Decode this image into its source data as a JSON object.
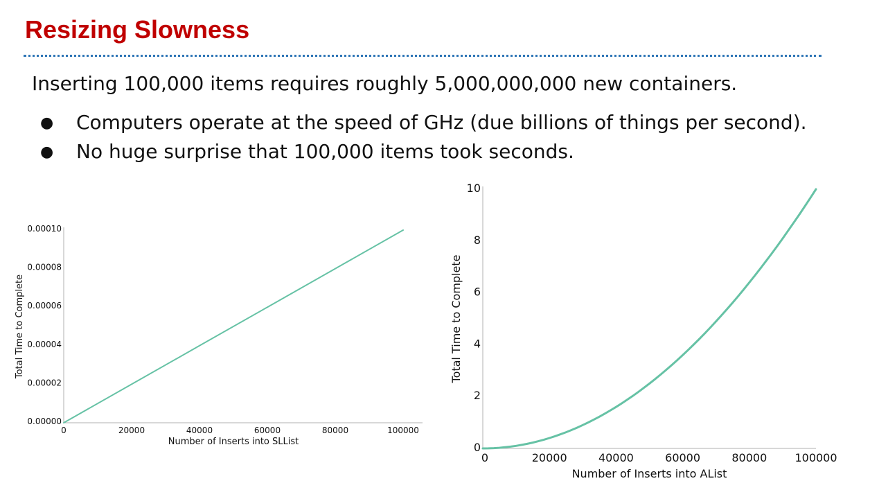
{
  "slide": {
    "title": "Resizing Slowness",
    "lead": "Inserting 100,000 items requires roughly 5,000,000,000 new containers.",
    "bullets": [
      "Computers operate at the speed of GHz (due billions of things per second).",
      "No huge surprise that 100,000 items took seconds."
    ],
    "bullet_glyph": "●"
  },
  "colors": {
    "title": "#c00000",
    "rule": "#2e75b6",
    "series": "#66c2a5"
  },
  "chart_data": [
    {
      "type": "line",
      "xlabel": "Number of Inserts into SLList",
      "ylabel": "Total Time to Complete",
      "xlim": [
        0,
        100000
      ],
      "ylim": [
        0,
        0.0001
      ],
      "xticks": [
        "0",
        "20000",
        "40000",
        "60000",
        "80000",
        "100000"
      ],
      "yticks": [
        "0.00000",
        "0.00002",
        "0.00004",
        "0.00006",
        "0.00008",
        "0.00010"
      ],
      "x": [
        0,
        20000,
        40000,
        60000,
        80000,
        100000
      ],
      "series": [
        {
          "values": [
            0,
            2e-05,
            4e-05,
            6e-05,
            8e-05,
            0.0001
          ]
        }
      ],
      "grid": false
    },
    {
      "type": "line",
      "xlabel": "Number of Inserts into AList",
      "ylabel": "Total Time to Complete",
      "xlim": [
        0,
        100000
      ],
      "ylim": [
        0,
        10
      ],
      "xticks": [
        "0",
        "20000",
        "40000",
        "60000",
        "80000",
        "100000"
      ],
      "yticks": [
        "0",
        "2",
        "4",
        "6",
        "8",
        "10"
      ],
      "x": [
        0,
        10000,
        20000,
        30000,
        40000,
        50000,
        60000,
        70000,
        80000,
        90000,
        100000
      ],
      "series": [
        {
          "values": [
            0,
            0.1,
            0.4,
            0.9,
            1.6,
            2.5,
            3.6,
            4.9,
            6.4,
            8.1,
            10
          ]
        }
      ],
      "grid": false
    }
  ]
}
